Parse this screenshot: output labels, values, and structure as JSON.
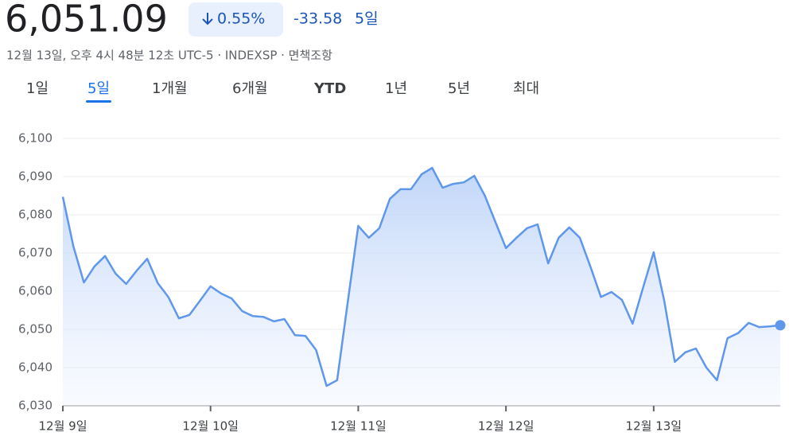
{
  "header": {
    "price": "6,051.09",
    "change_percent": "0.55%",
    "change": "-33.58",
    "period": "5일",
    "subtitle": "12월 13일, 오후 4시 48분 12초 UTC-5 · INDEXSP · 면책조항"
  },
  "tabs": {
    "items": [
      "1일",
      "5일",
      "1개월",
      "6개월",
      "YTD",
      "1년",
      "5년",
      "최대"
    ],
    "selected": 1
  },
  "chart_data": {
    "type": "line",
    "color": "#5f97ec",
    "values": [
      6084.7,
      6071.7,
      6062.3,
      6066.5,
      6069.2,
      6064.6,
      6061.9,
      6065.4,
      6068.5,
      6062.1,
      6058.5,
      6052.9,
      6053.8,
      6057.5,
      6061.3,
      6059.4,
      6058.1,
      6054.8,
      6053.5,
      6053.3,
      6052.1,
      6052.7,
      6048.5,
      6048.3,
      6044.6,
      6035.2,
      6036.7,
      6057.0,
      6077.1,
      6074.0,
      6076.5,
      6084.2,
      6086.7,
      6086.7,
      6090.6,
      6092.3,
      6087.1,
      6088.1,
      6088.5,
      6090.2,
      6085.0,
      6078.1,
      6071.3,
      6074.0,
      6076.5,
      6077.5,
      6067.3,
      6074.0,
      6076.7,
      6074.0,
      6066.5,
      6058.5,
      6059.8,
      6057.7,
      6051.5,
      6061.0,
      6070.2,
      6057.5,
      6041.5,
      6044.0,
      6045.0,
      6040.0,
      6036.7,
      6047.7,
      6049.0,
      6051.7,
      6050.6,
      6050.8,
      6051.09
    ],
    "xlim": [
      0,
      68
    ],
    "xticks": [
      {
        "value": 0,
        "label": "12월 9일"
      },
      {
        "value": 14,
        "label": "12월 10일"
      },
      {
        "value": 28,
        "label": "12월 11일"
      },
      {
        "value": 42,
        "label": "12월 12일"
      },
      {
        "value": 56,
        "label": "12월 13일"
      }
    ],
    "ylim": [
      6030,
      6100
    ],
    "yticks": [
      {
        "value": 6030,
        "label": "6,030"
      },
      {
        "value": 6040,
        "label": "6,040"
      },
      {
        "value": 6050,
        "label": "6,050"
      },
      {
        "value": 6060,
        "label": "6,060"
      },
      {
        "value": 6070,
        "label": "6,070"
      },
      {
        "value": 6080,
        "label": "6,080"
      },
      {
        "value": 6090,
        "label": "6,090"
      },
      {
        "value": 6100,
        "label": "6,100"
      }
    ],
    "grid": true
  }
}
